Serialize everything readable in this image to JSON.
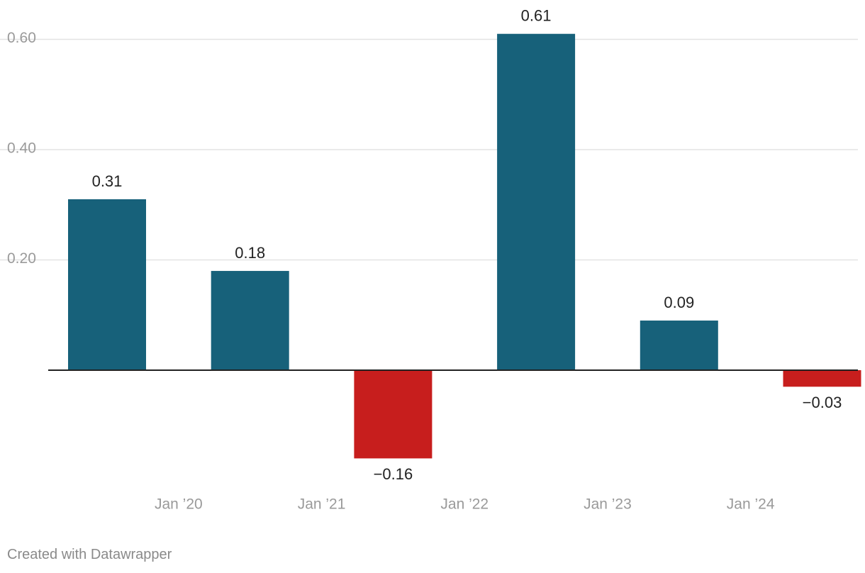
{
  "chart_data": {
    "type": "bar",
    "categories": [
      "2019",
      "2020",
      "2021",
      "2022",
      "2023",
      "2024"
    ],
    "values": [
      0.31,
      0.18,
      -0.16,
      0.61,
      0.09,
      -0.03
    ],
    "value_labels": [
      "0.31",
      "0.18",
      "−0.16",
      "0.61",
      "0.09",
      "−0.03"
    ],
    "x_tick_labels": [
      {
        "label": "Jan ’20",
        "at": 2019.5
      },
      {
        "label": "Jan ’21",
        "at": 2020.5
      },
      {
        "label": "Jan ’22",
        "at": 2021.5
      },
      {
        "label": "Jan ’23",
        "at": 2022.5
      },
      {
        "label": "Jan ’24",
        "at": 2023.5
      }
    ],
    "y_ticks": [
      {
        "value": 0.2,
        "label": "0.20"
      },
      {
        "value": 0.4,
        "label": "0.40"
      },
      {
        "value": 0.6,
        "label": "0.60"
      }
    ],
    "ylim": [
      -0.2,
      0.65
    ],
    "title": "",
    "xlabel": "",
    "ylabel": "",
    "grid": true,
    "colors": {
      "positive": "#17617a",
      "negative": "#c71e1d",
      "grid": "#e3e3e3",
      "axis": "#222222",
      "tick_text": "#9a9a9a",
      "value_text": "#222222"
    }
  },
  "footer": {
    "credit": "Created with Datawrapper"
  }
}
